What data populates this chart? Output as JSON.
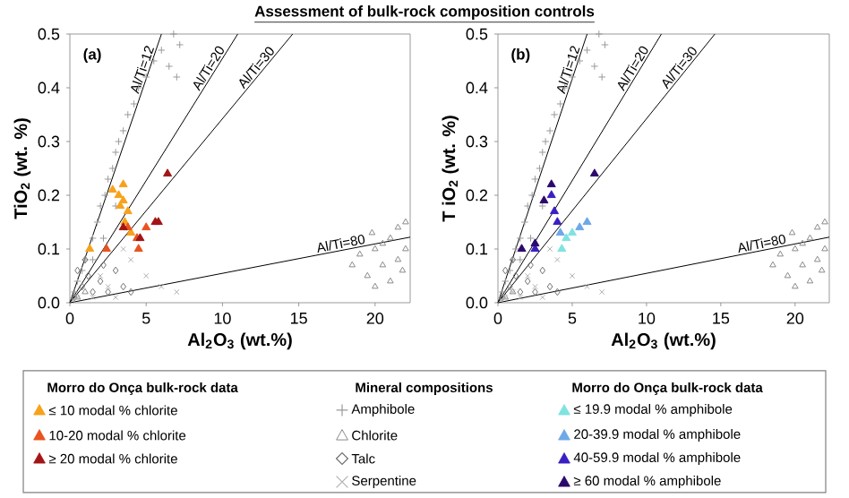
{
  "chart_data": [
    {
      "type": "scatter",
      "title": "Assessment of bulk-rock composition controls",
      "xlabel": "Al$_{2}$O$_{3}$ (wt.%)",
      "ylabel": "TiO$_{2}$ (wt. %)",
      "legend_title": "Morro do Onça bulk-rock data",
      "annotations": [
        "(a)",
        "Mineral compositions"
      ],
      "legend": "bottom",
      "xlim": [
        0,
        22.3
      ],
      "ylim": [
        0,
        0.5
      ],
      "xticks": [
        0,
        5,
        10,
        15,
        20
      ],
      "yticks": [
        {
          "value": 0,
          "label": "0.0"
        },
        0.1,
        0.2,
        0.3,
        0.4,
        0.5
      ],
      "series": [
        {
          "name": "Amphibole",
          "color": "#9a9a9a",
          "marker": "plus",
          "x": [
            0.3,
            0.5,
            0.8,
            1.0,
            1.2,
            1.5,
            1.8,
            2.0,
            2.3,
            2.5,
            2.8,
            3.0,
            3.2,
            3.5,
            3.8,
            4.2,
            4.5,
            5.0,
            5.5,
            6.0,
            6.5,
            7.0,
            7.2,
            6.8,
            2.2,
            1.5,
            3.0
          ],
          "values": [
            0.02,
            0.04,
            0.06,
            0.08,
            null,
            0.12,
            0.15,
            0.18,
            0.2,
            0.23,
            0.25,
            0.28,
            0.3,
            0.32,
            0.35,
            0.37,
            0.4,
            0.42,
            0.45,
            0.47,
            0.44,
            0.42,
            0.48,
            0.5,
            0.12,
            0.08,
            0.18
          ]
        },
        {
          "name": "Chlorite",
          "color": "#8a8a8a",
          "marker": "triangle",
          "x": [
            18.5,
            19.0,
            19.5,
            20.0,
            20.5,
            21.0,
            21.5,
            22.0,
            21.0,
            20.5,
            21.8,
            19.8,
            22.0,
            20.0,
            1.0,
            0.5,
            21.5
          ],
          "values": [
            0.07,
            0.09,
            0.05,
            0.1,
            0.07,
            0.12,
            0.08,
            0.15,
            0.04,
            0.11,
            0.06,
            0.13,
            0.1,
            0.03,
            0.02,
            0.01,
            0.14
          ]
        },
        {
          "name": "Talc",
          "color": "#707070",
          "marker": "diamond",
          "x": [
            0.3,
            0.8,
            1.2,
            2.0,
            2.5,
            3.0,
            3.5,
            0.5,
            1.5,
            2.2,
            4.0,
            1.0
          ],
          "values": [
            0.01,
            0.03,
            0.05,
            0.04,
            0.02,
            0.06,
            0.03,
            0.06,
            0.02,
            0.07,
            0.02,
            0.08
          ]
        },
        {
          "name": "Serpentine",
          "color": "#b0b0b0",
          "marker": "cross",
          "x": [
            0.2,
            0.5,
            1.0,
            1.5,
            2.5,
            3.5,
            4.0,
            5.0,
            6.0,
            7.0,
            2.0,
            3.0
          ],
          "values": [
            0.005,
            0.01,
            null,
            0.01,
            0.03,
            0.1,
            0.08,
            0.05,
            0.03,
            0.02,
            0.05,
            0.01
          ]
        },
        {
          "name": "≤ 10 modal % chlorite",
          "color": "#f7a21b",
          "marker": "triangle",
          "x": [
            1.3,
            3.2,
            3.5,
            3.3,
            3.8,
            2.8,
            3.6,
            4.0,
            3.5
          ],
          "values": [
            0.1,
            0.2,
            0.22,
            0.18,
            0.17,
            0.21,
            0.15,
            0.13,
            0.19
          ]
        },
        {
          "name": "10-20 modal % chlorite",
          "color": "#e8531e",
          "marker": "triangle",
          "x": [
            2.4,
            4.4,
            4.5,
            3.8,
            5.0
          ],
          "values": [
            0.1,
            0.12,
            0.1,
            0.14,
            0.14
          ]
        },
        {
          "name": "≥  20 modal % chlorite",
          "color": "#a31515",
          "marker": "triangle",
          "x": [
            6.4,
            5.6,
            5.8,
            4.6,
            3.5
          ],
          "values": [
            0.24,
            0.15,
            0.15,
            0.12,
            0.14
          ]
        },
        {
          "type": "line",
          "name": "Al/Ti=12",
          "color": "#000000",
          "marker": "none",
          "x": [
            0,
            6.0
          ],
          "values": [
            0,
            0.5
          ]
        },
        {
          "type": "line",
          "name": "Al/Ti=20",
          "color": "#000000",
          "marker": "none",
          "x": [
            0,
            11.0
          ],
          "values": [
            0,
            0.5
          ]
        },
        {
          "type": "line",
          "name": "Al/Ti=30",
          "color": "#000000",
          "marker": "none",
          "x": [
            0,
            14.6
          ],
          "values": [
            0,
            0.5
          ]
        },
        {
          "type": "line",
          "name": "Al/Ti=80",
          "color": "#000000",
          "marker": "none",
          "x": [
            0,
            22.3
          ],
          "values": [
            0,
            0.122
          ]
        }
      ]
    },
    {
      "type": "scatter",
      "xlabel": "Al$_{2}$O$_{3}$ (wt.%)",
      "ylabel": "T iO$_{2}$ (wt. %)",
      "legend_title": "Morro do Onça bulk-rock data",
      "annotations": [
        "(b)"
      ],
      "legend": "bottom",
      "xlim": [
        0,
        22.3
      ],
      "ylim": [
        0,
        0.5
      ],
      "xticks": [
        0,
        5,
        10,
        15,
        20
      ],
      "yticks": [
        {
          "value": 0,
          "label": "0.0"
        },
        0.1,
        0.2,
        0.3,
        0.4,
        0.5
      ],
      "series": [
        {
          "color": "#9a9a9a",
          "marker": "plus",
          "x": [
            0.3,
            0.5,
            0.8,
            1.0,
            1.2,
            1.5,
            1.8,
            2.0,
            2.3,
            2.5,
            2.8,
            3.0,
            3.2,
            3.5,
            3.8,
            4.2,
            4.5,
            5.0,
            5.5,
            6.0,
            6.5,
            7.0,
            7.2,
            6.8,
            2.2,
            1.5,
            3.0
          ],
          "values": [
            0.02,
            0.04,
            0.06,
            0.08,
            0.1,
            0.12,
            0.15,
            0.18,
            0.2,
            0.23,
            0.25,
            0.28,
            0.3,
            0.32,
            0.35,
            0.37,
            0.4,
            0.42,
            0.45,
            0.47,
            0.44,
            0.42,
            0.48,
            0.5,
            0.12,
            0.08,
            0.18
          ]
        },
        {
          "color": "#8a8a8a",
          "marker": "triangle",
          "x": [
            18.5,
            19.0,
            19.5,
            20.0,
            20.5,
            21.0,
            21.5,
            22.0,
            21.0,
            20.5,
            21.8,
            19.8,
            22.0,
            20.0,
            1.0,
            0.5,
            21.5
          ],
          "values": [
            0.07,
            0.09,
            0.05,
            0.1,
            0.07,
            0.12,
            0.08,
            0.15,
            0.04,
            0.11,
            0.06,
            0.13,
            0.1,
            0.03,
            0.02,
            0.01,
            0.14
          ]
        },
        {
          "color": "#707070",
          "marker": "diamond",
          "x": [
            0.3,
            0.8,
            1.2,
            2.0,
            2.5,
            3.0,
            3.5,
            0.5,
            1.5,
            2.2,
            4.0,
            1.0
          ],
          "values": [
            0.01,
            0.03,
            0.05,
            0.04,
            0.02,
            0.06,
            0.03,
            0.06,
            0.02,
            0.07,
            0.02,
            0.08
          ]
        },
        {
          "color": "#b0b0b0",
          "marker": "cross",
          "x": [
            0.2,
            0.5,
            1.0,
            1.5,
            2.5,
            3.5,
            4.0,
            5.0,
            6.0,
            7.0,
            2.0,
            3.0
          ],
          "values": [
            0.005,
            0.01,
            0.02,
            0.01,
            0.03,
            0.1,
            0.08,
            0.05,
            0.03,
            0.02,
            0.05,
            0.01
          ]
        },
        {
          "name": "≤ 19.9 modal % amphibole",
          "color": "#7fe3e0",
          "marker": "triangle",
          "x": [
            4.3,
            4.6,
            5.0
          ],
          "values": [
            0.1,
            0.12,
            0.13
          ]
        },
        {
          "name": "20-39.9 modal % amphibole",
          "color": "#6fa8e8",
          "marker": "triangle",
          "x": [
            6.0,
            5.5,
            4.2
          ],
          "values": [
            0.15,
            0.14,
            0.13
          ]
        },
        {
          "name": "40-59.9 modal % amphibole",
          "color": "#3a1fc2",
          "marker": "triangle",
          "x": [
            3.8,
            3.6,
            4.0,
            2.5
          ],
          "values": [
            0.17,
            0.2,
            0.15,
            0.1
          ]
        },
        {
          "name": "≥ 60 modal % amphibole",
          "color": "#2c0a6b",
          "marker": "triangle",
          "x": [
            1.6,
            2.5,
            3.6,
            3.1,
            6.5
          ],
          "values": [
            0.1,
            0.11,
            0.22,
            0.19,
            0.24
          ]
        },
        {
          "type": "line",
          "name": "Al/Ti=12",
          "color": "#000000",
          "marker": "none",
          "x": [
            0,
            6.0
          ],
          "values": [
            0,
            0.5
          ]
        },
        {
          "type": "line",
          "name": "Al/Ti=20",
          "color": "#000000",
          "marker": "none",
          "x": [
            0,
            11.0
          ],
          "values": [
            0,
            0.5
          ]
        },
        {
          "type": "line",
          "name": "Al/Ti=30",
          "color": "#000000",
          "marker": "none",
          "x": [
            0,
            14.6
          ],
          "values": [
            0,
            0.5
          ]
        },
        {
          "type": "line",
          "name": "Al/Ti=80",
          "color": "#000000",
          "marker": "none",
          "x": [
            0,
            22.3
          ],
          "values": [
            0,
            0.122
          ]
        }
      ]
    }
  ]
}
